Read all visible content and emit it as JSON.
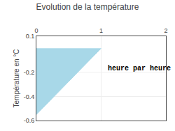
{
  "chart_data": {
    "type": "area",
    "title": "Evolution de la température",
    "ylabel": "Température en °C",
    "x": [
      0,
      0,
      1
    ],
    "values": [
      0,
      -0.55,
      0
    ],
    "color": "#a8d8e8",
    "xlim": [
      0,
      2
    ],
    "xticks": [
      0,
      1,
      2
    ],
    "ylim": [
      -0.6,
      0.1
    ],
    "yticks": [
      0.1,
      -0.2,
      -0.4,
      -0.6
    ],
    "annotations": [
      {
        "text": "heure par heure",
        "x": 1.08,
        "y": -0.17
      }
    ],
    "grid": true
  }
}
